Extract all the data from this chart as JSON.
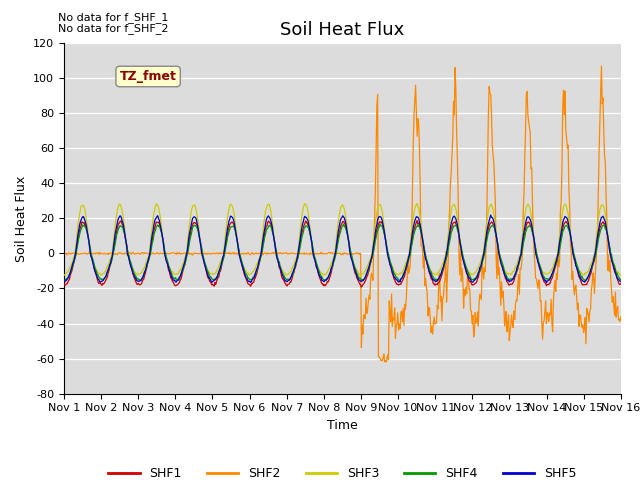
{
  "title": "Soil Heat Flux",
  "ylabel": "Soil Heat Flux",
  "xlabel": "Time",
  "ylim": [
    -80,
    120
  ],
  "xlim": [
    0,
    15
  ],
  "x_tick_labels": [
    "Nov 1",
    "Nov 2",
    "Nov 3",
    "Nov 4",
    "Nov 5",
    "Nov 6",
    "Nov 7",
    "Nov 8",
    "Nov 9",
    "Nov 10",
    "Nov 11",
    "Nov 12",
    "Nov 13",
    "Nov 14",
    "Nov 15",
    "Nov 16"
  ],
  "colors": {
    "SHF1": "#cc0000",
    "SHF2": "#ff8800",
    "SHF3": "#cccc00",
    "SHF4": "#009900",
    "SHF5": "#0000cc"
  },
  "bg_color": "#dcdcdc",
  "grid_color": "#ffffff",
  "no_data_text_1": "No data for f_SHF_1",
  "no_data_text_2": "No data for f_SHF_2",
  "tz_label": "TZ_fmet",
  "tz_bg": "#ffffcc",
  "tz_fg": "#880000",
  "title_fontsize": 13,
  "axis_fontsize": 9,
  "tick_fontsize": 8,
  "legend_entries": [
    "SHF1",
    "SHF2",
    "SHF3",
    "SHF4",
    "SHF5"
  ]
}
